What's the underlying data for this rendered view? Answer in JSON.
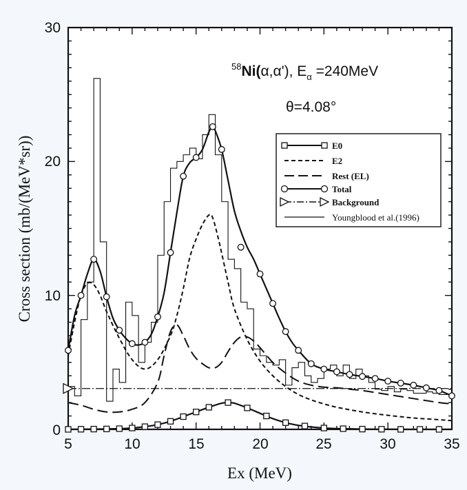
{
  "chart_data": {
    "type": "line",
    "title_parts": {
      "pre": "58",
      "main": "Ni(",
      "alpha1": "α",
      "comma": ",",
      "alpha2": "α",
      "post": "'), E",
      "sub": "α",
      "tail": " =240MeV"
    },
    "angle_label": "θ=4.08°",
    "xlabel": "Ex (MeV)",
    "ylabel": "Cross section (mb/(MeV*sr))",
    "xlim": [
      5,
      35
    ],
    "ylim": [
      0,
      30
    ],
    "xticks": [
      "5",
      "10",
      "15",
      "20",
      "25",
      "30",
      "35"
    ],
    "yticks": [
      "0",
      "10",
      "20",
      "30"
    ],
    "legend_position": "right",
    "series": [
      {
        "name": "E0",
        "style": "solid-square",
        "x": [
          5,
          6,
          7,
          8,
          9,
          10,
          11,
          12,
          13,
          14,
          15,
          16,
          17,
          17.5,
          18,
          19,
          20,
          21,
          22,
          23,
          24,
          25,
          26,
          27,
          28,
          29,
          30,
          31,
          32,
          33,
          34,
          35
        ],
        "y": [
          0,
          0.01,
          0.02,
          0.03,
          0.05,
          0.1,
          0.2,
          0.35,
          0.6,
          0.95,
          1.3,
          1.65,
          1.95,
          2.0,
          1.95,
          1.6,
          1.2,
          0.8,
          0.5,
          0.3,
          0.18,
          0.1,
          0.06,
          0.04,
          0.02,
          0.01,
          0.01,
          0,
          0,
          0,
          0,
          0
        ],
        "markers_x": [
          5,
          6,
          7,
          8,
          9,
          10,
          11,
          12,
          13,
          14,
          15,
          16,
          17.5,
          19,
          20.5,
          22,
          23.5,
          25,
          26.5,
          28,
          29.5,
          31,
          32.5,
          34
        ],
        "markers_y": [
          0,
          0.01,
          0.02,
          0.03,
          0.05,
          0.1,
          0.2,
          0.35,
          0.6,
          0.95,
          1.3,
          1.65,
          2.0,
          1.6,
          1.0,
          0.5,
          0.25,
          0.1,
          0.05,
          0.02,
          0.01,
          0,
          0,
          0
        ]
      },
      {
        "name": "E2",
        "style": "short-dash",
        "x": [
          5,
          5.5,
          6,
          6.5,
          7,
          7.5,
          8,
          9,
          10,
          11,
          12,
          13,
          13.5,
          14,
          14.5,
          15,
          15.5,
          16,
          16.3,
          16.8,
          17.5,
          18,
          19,
          20,
          21,
          22,
          23,
          24,
          25,
          26,
          28,
          30,
          32,
          34,
          35
        ],
        "y": [
          5.5,
          8.0,
          10.0,
          10.9,
          10.8,
          10.0,
          8.8,
          6.8,
          5.2,
          4.5,
          5.2,
          7.0,
          8.5,
          10.5,
          12.8,
          14.2,
          15.3,
          16.0,
          15.8,
          14.0,
          11.0,
          9.0,
          6.7,
          5.1,
          4.0,
          3.2,
          2.6,
          2.2,
          1.9,
          1.65,
          1.3,
          1.05,
          0.85,
          0.72,
          0.65
        ]
      },
      {
        "name": "Rest (EL)",
        "style": "long-dash",
        "x": [
          5,
          6,
          7,
          8,
          9,
          10,
          11,
          12,
          12.5,
          13,
          13.5,
          14,
          14.5,
          15,
          15.5,
          16,
          16.5,
          17,
          17.5,
          18,
          18.5,
          19,
          19.5,
          20,
          21,
          22,
          23,
          24,
          25,
          26,
          27,
          28,
          30,
          32,
          34,
          35
        ],
        "y": [
          2.0,
          1.8,
          1.5,
          1.3,
          1.3,
          1.5,
          2.0,
          3.5,
          5.5,
          7.3,
          7.8,
          7.0,
          6.0,
          5.3,
          4.9,
          4.6,
          4.6,
          5.0,
          5.8,
          6.5,
          6.9,
          6.9,
          6.6,
          6.1,
          5.0,
          4.2,
          3.6,
          3.3,
          3.15,
          3.1,
          3.0,
          2.9,
          2.6,
          2.3,
          2.0,
          1.9
        ]
      },
      {
        "name": "Total",
        "style": "solid-circle",
        "x": [
          5,
          5.5,
          6,
          6.5,
          7,
          7.5,
          8,
          8.5,
          9,
          9.5,
          10,
          10.5,
          11,
          11.5,
          12,
          12.5,
          13,
          13.5,
          14,
          14.5,
          15,
          15.5,
          16,
          16.3,
          16.5,
          17,
          17.5,
          18,
          18.5,
          19,
          19.5,
          20,
          20.5,
          21,
          21.5,
          22,
          22.5,
          23,
          24,
          25,
          26,
          27,
          28,
          29,
          30,
          31,
          32,
          33,
          34,
          35
        ],
        "y": [
          5.9,
          8.5,
          10.0,
          11.6,
          12.7,
          11.8,
          9.9,
          8.3,
          7.4,
          6.8,
          6.4,
          6.3,
          6.5,
          7.1,
          8.4,
          10.2,
          13.2,
          16.2,
          18.9,
          19.9,
          20.3,
          20.9,
          22.2,
          22.6,
          22.3,
          20.9,
          18.6,
          16.3,
          14.8,
          13.6,
          12.7,
          11.6,
          10.5,
          9.4,
          8.3,
          7.3,
          6.5,
          5.9,
          4.9,
          4.5,
          4.3,
          4.1,
          3.95,
          3.8,
          3.6,
          3.45,
          3.3,
          3.1,
          2.9,
          2.5
        ],
        "markers_x": [
          5,
          6,
          7,
          8,
          9,
          10,
          11,
          12,
          13,
          14,
          15,
          16.3,
          17,
          18.5,
          20,
          21,
          22,
          23,
          24,
          25,
          26,
          27,
          28,
          29,
          30,
          31,
          32,
          33,
          34,
          35
        ],
        "markers_y": [
          5.9,
          10.0,
          12.7,
          9.9,
          7.4,
          6.4,
          6.5,
          8.4,
          13.2,
          18.9,
          20.3,
          22.6,
          20.9,
          13.6,
          11.6,
          9.4,
          7.3,
          5.9,
          4.9,
          4.5,
          4.3,
          4.1,
          3.95,
          3.8,
          3.6,
          3.45,
          3.3,
          3.1,
          2.9,
          2.5
        ]
      },
      {
        "name": "Background",
        "style": "dash-dot",
        "x": [
          5,
          35
        ],
        "y": [
          3.05,
          3.05
        ]
      },
      {
        "name": "Youngblood et al.(1996)",
        "style": "histogram",
        "x": [
          5,
          5.5,
          6,
          6.5,
          7,
          7.5,
          8,
          8.5,
          9,
          9.5,
          10,
          10.5,
          11,
          11.5,
          12,
          12.5,
          13,
          13.5,
          14,
          14.5,
          15,
          15.5,
          16,
          16.5,
          17,
          17.5,
          18,
          18.5,
          19,
          19.5,
          20,
          20.5,
          21,
          21.5,
          22,
          22.5,
          23,
          23.5,
          24,
          24.5,
          25,
          25.5,
          26,
          26.5,
          27,
          27.5,
          28,
          28.5,
          29,
          29.5,
          30,
          30.5,
          31,
          31.5,
          32,
          32.5,
          33,
          33.5,
          34,
          34.5,
          35
        ],
        "y": [
          3.2,
          2.5,
          8.2,
          11.0,
          26.2,
          14.0,
          2.1,
          4.5,
          3.5,
          9.5,
          8.5,
          5.0,
          6.5,
          8.0,
          13.0,
          17.0,
          19.5,
          20.0,
          20.5,
          21.0,
          20.2,
          22.0,
          23.5,
          20.5,
          17.0,
          12.7,
          12.0,
          9.5,
          9.0,
          6.0,
          5.5,
          5.0,
          4.8,
          5.2,
          3.3,
          4.6,
          5.0,
          4.0,
          3.5,
          3.8,
          4.5,
          4.8,
          4.0,
          4.8,
          3.8,
          4.5,
          4.0,
          3.5,
          3.0,
          2.9,
          3.2,
          2.8,
          3.0,
          2.9,
          2.7,
          2.7,
          2.8,
          2.7,
          2.6,
          2.6,
          2.5
        ]
      }
    ]
  }
}
